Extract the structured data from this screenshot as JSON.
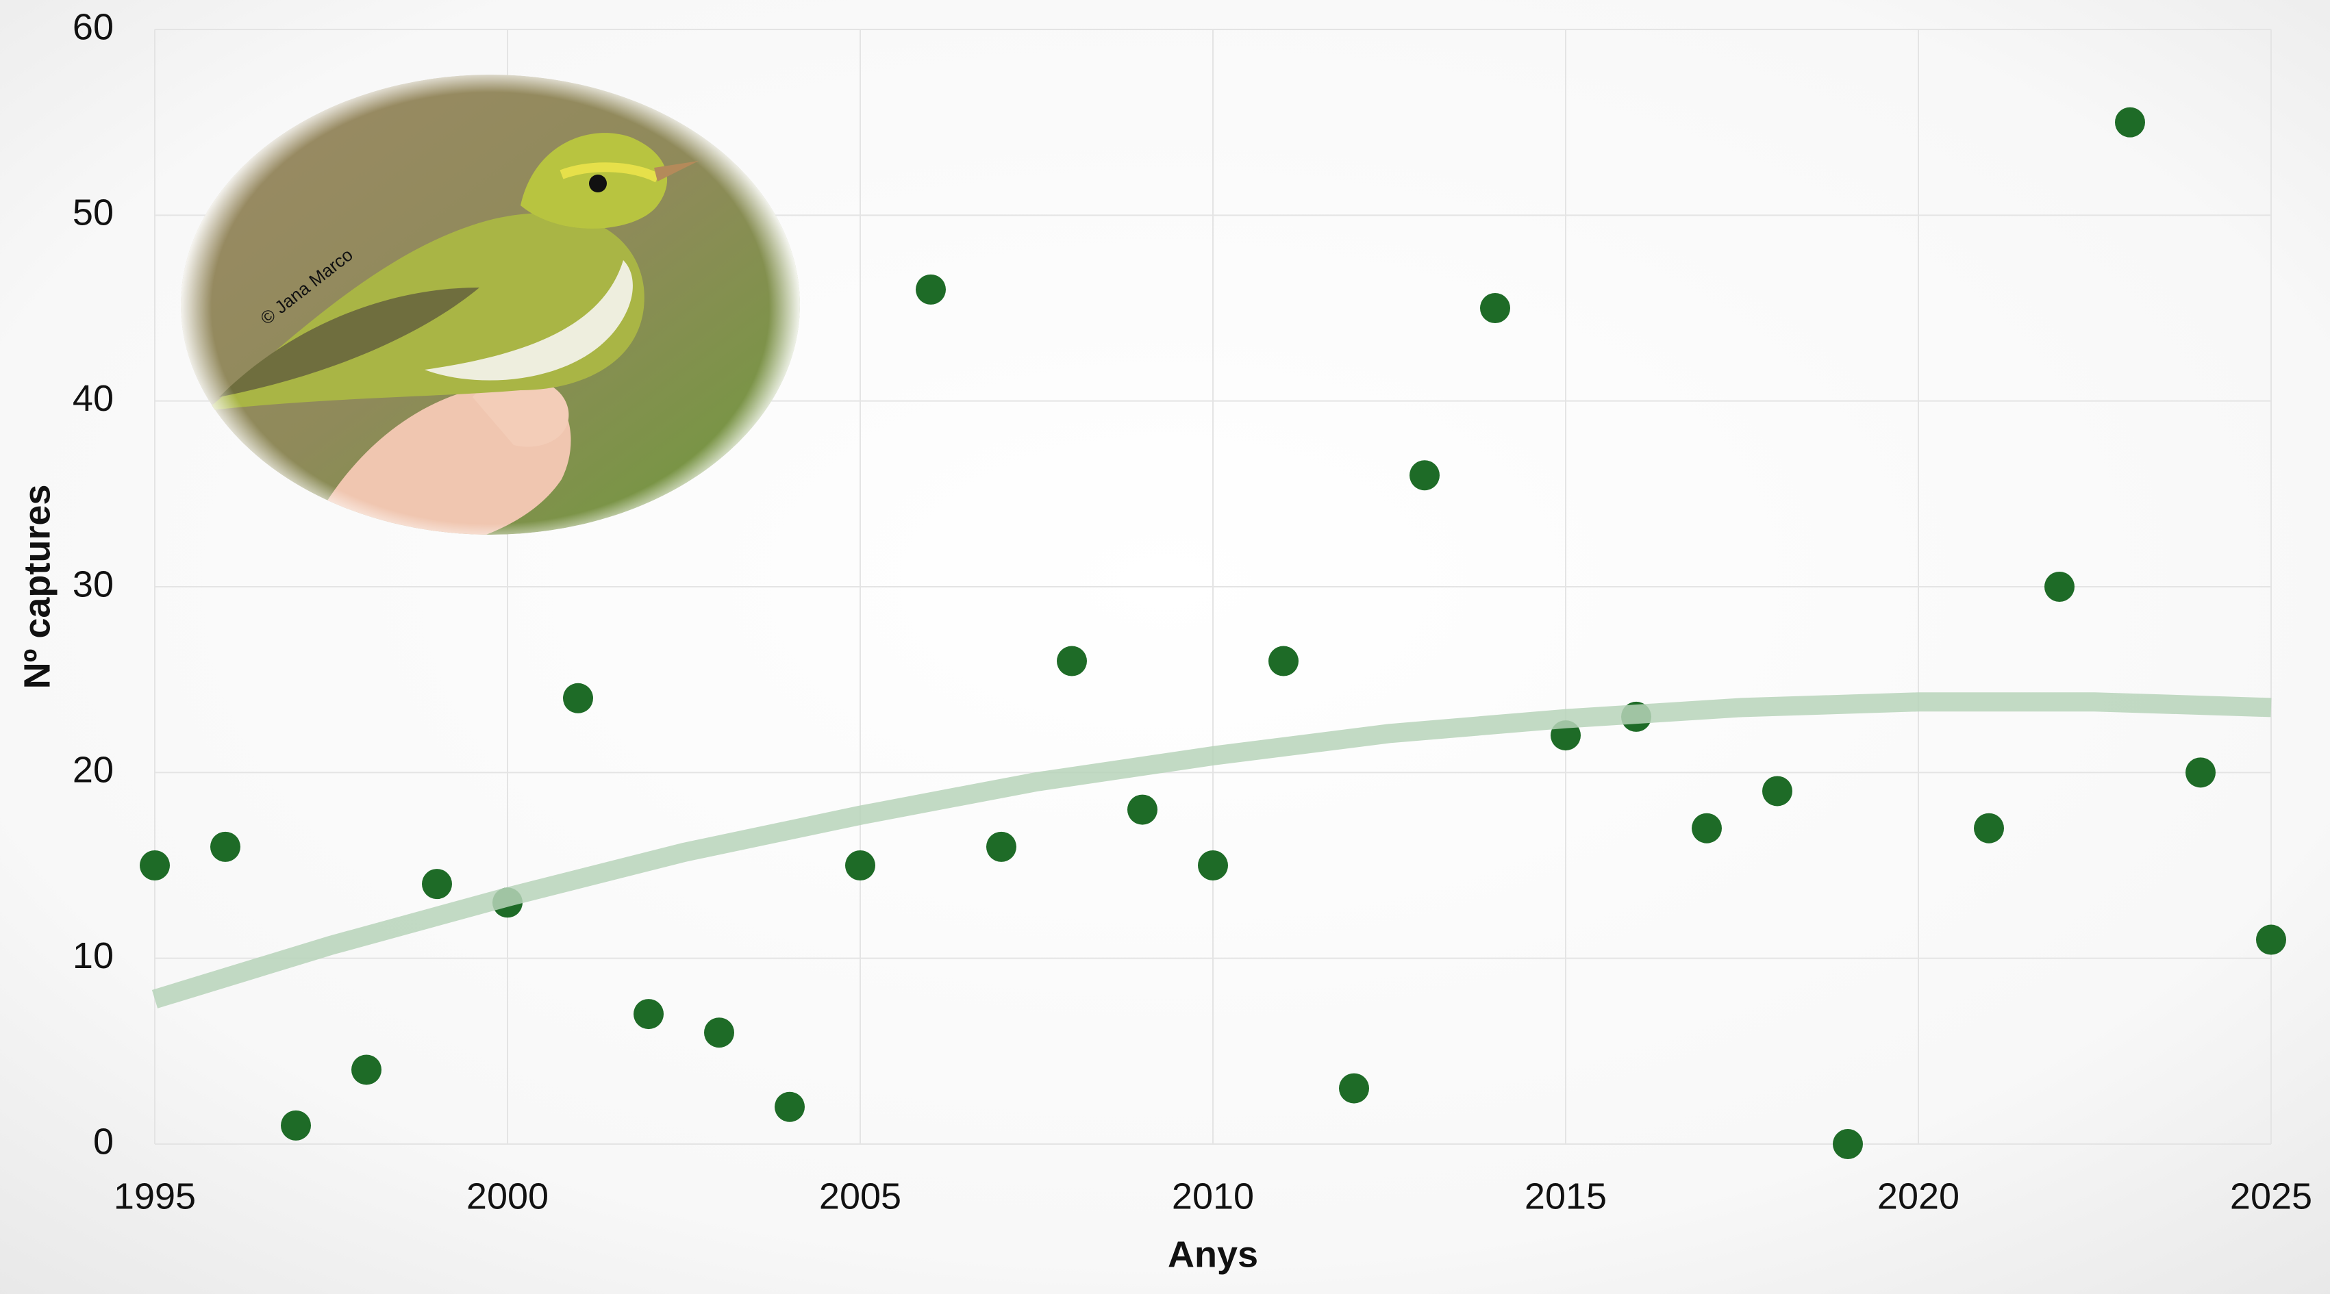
{
  "chart_data": {
    "type": "scatter",
    "x_label": "Anys",
    "y_label": "Nº captures",
    "photo_credit": "© Jana Marco",
    "xlim": [
      1995,
      2025
    ],
    "xticks": [
      1995,
      2000,
      2005,
      2010,
      2015,
      2020,
      2025
    ],
    "ylim": [
      0,
      60
    ],
    "yticks": [
      0,
      10,
      20,
      30,
      40,
      50,
      60
    ],
    "grid": true,
    "series": [
      {
        "type": "scatter",
        "color": "#1e6b27",
        "x": [
          1995,
          1996,
          1997,
          1998,
          1999,
          2000,
          2001,
          2002,
          2003,
          2004,
          2005,
          2006,
          2007,
          2008,
          2009,
          2010,
          2011,
          2012,
          2013,
          2014,
          2015,
          2016,
          2017,
          2018,
          2019,
          2021,
          2022,
          2023,
          2024,
          2025
        ],
        "values": [
          15,
          16,
          1,
          4,
          14,
          13,
          24,
          7,
          6,
          2,
          15,
          46,
          16,
          26,
          18,
          15,
          26,
          3,
          36,
          45,
          22,
          23,
          17,
          19,
          0,
          17,
          30,
          55,
          20,
          11
        ]
      },
      {
        "type": "line",
        "color": "#b7d4ba",
        "x": [
          1995,
          1997.5,
          2000,
          2002.5,
          2005,
          2007.5,
          2010,
          2012.5,
          2015,
          2017.5,
          2020,
          2022.5,
          2025
        ],
        "values": [
          7.8,
          10.7,
          13.3,
          15.7,
          17.7,
          19.5,
          20.9,
          22.1,
          22.9,
          23.5,
          23.8,
          23.8,
          23.5
        ]
      }
    ]
  }
}
